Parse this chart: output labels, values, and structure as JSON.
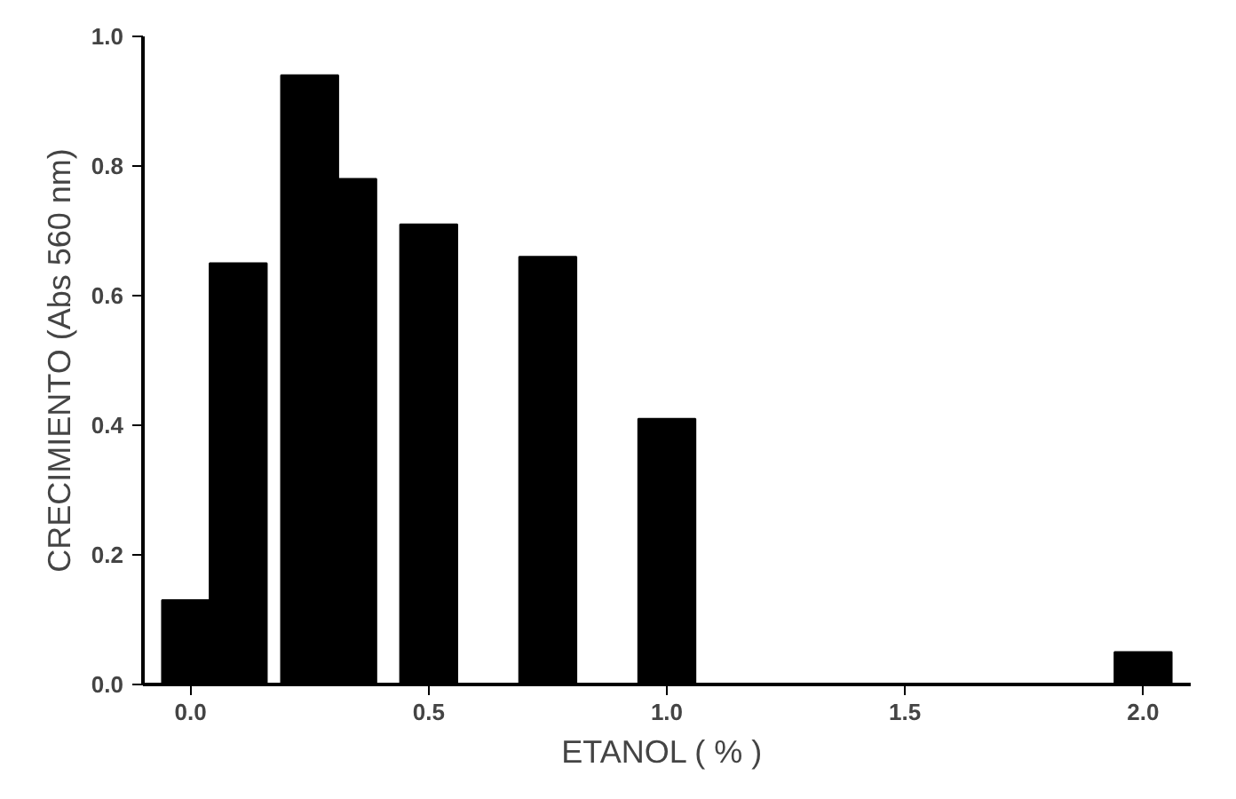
{
  "chart_data": {
    "type": "bar",
    "xlabel": "ETANOL  ( % )",
    "ylabel": "CRECIMIENTO (Abs 560 nm)",
    "x": [
      0.0,
      0.1,
      0.25,
      0.33,
      0.5,
      0.75,
      1.0,
      2.0
    ],
    "values": [
      0.13,
      0.65,
      0.94,
      0.78,
      0.71,
      0.66,
      0.41,
      0.05
    ],
    "color": "#000000",
    "xlim": [
      -0.1,
      2.1
    ],
    "xticks": [
      {
        "value": 0.0,
        "label": "0.0"
      },
      {
        "value": 0.5,
        "label": "0.5"
      },
      {
        "value": 1.0,
        "label": "1.0"
      },
      {
        "value": 1.5,
        "label": "1.5"
      },
      {
        "value": 2.0,
        "label": "2.0"
      }
    ],
    "ylim": [
      0,
      1.0
    ],
    "yticks": [
      {
        "value": 0.0,
        "label": "0.0"
      },
      {
        "value": 0.2,
        "label": "0.2"
      },
      {
        "value": 0.4,
        "label": "0.4"
      },
      {
        "value": 0.6,
        "label": "0.6"
      },
      {
        "value": 0.8,
        "label": "0.8"
      },
      {
        "value": 1.0,
        "label": "1.0"
      }
    ],
    "grid": false
  }
}
